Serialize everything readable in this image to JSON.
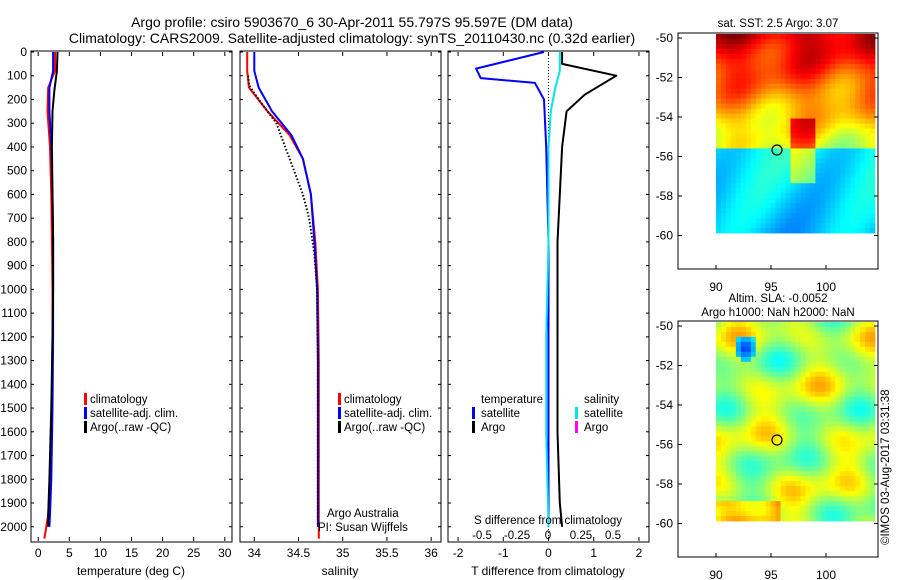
{
  "title_line1": "Argo profile: csiro 5903670_6 30-Apr-2011 55.797S 95.597E (DM data)",
  "title_line2": "Climatology: CARS2009. Satellite-adjusted climatology: synTS_20110430.nc (0.32d earlier)",
  "side_stamp": "©IMOS 03-Aug-2017 03:31:38",
  "colors": {
    "climatology": "#ff0000",
    "satellite": "#0000ff",
    "argo": "#000000",
    "salinity_satellite": "#00e5e5",
    "salinity_argo": "#ff00ff"
  },
  "depth_ticks": [
    "0",
    "100",
    "200",
    "300",
    "400",
    "500",
    "600",
    "700",
    "800",
    "900",
    "1000",
    "1100",
    "1200",
    "1300",
    "1400",
    "1500",
    "1600",
    "1700",
    "1800",
    "1900",
    "2000"
  ],
  "panels": {
    "temperature": {
      "xlabel": "temperature (deg C)",
      "xticks": [
        "0",
        "5",
        "10",
        "15",
        "20",
        "25",
        "30"
      ],
      "legend": [
        "climatology",
        "satellite-adj. clim.",
        "Argo(..raw -QC)"
      ]
    },
    "salinity": {
      "xlabel": "salinity",
      "xticks": [
        "34",
        "34.5",
        "35",
        "35.5",
        "36"
      ],
      "legend": [
        "climatology",
        "satellite-adj. clim.",
        "Argo(..raw -QC)"
      ],
      "note1": "Argo Australia",
      "note2": "PI: Susan Wijffels"
    },
    "difference": {
      "xlabel": "T difference from climatology",
      "xlabel_top": "S difference from climatology",
      "xticks_t": [
        "-2",
        "-1",
        "0",
        "1",
        "2"
      ],
      "xticks_s": [
        "-0.5",
        "-0.25",
        "0",
        "0.25",
        "0.5"
      ],
      "legend_temp_title": "temperature",
      "legend_sal_title": "salinity",
      "legend_temp": [
        "satellite",
        "Argo"
      ],
      "legend_sal": [
        "satellite",
        "Argo"
      ]
    }
  },
  "maps": {
    "sst": {
      "title": "sat. SST: 2.5 Argo: 3.07",
      "yticks": [
        "-50",
        "-52",
        "-54",
        "-56",
        "-58",
        "-60"
      ],
      "xticks": [
        "90",
        "95",
        "100"
      ]
    },
    "sla": {
      "title1": "Altim. SLA: -0.0052",
      "title2": "Argo h1000: NaN h2000: NaN",
      "yticks": [
        "-50",
        "-52",
        "-54",
        "-56",
        "-58",
        "-60"
      ],
      "xticks": [
        "90",
        "95",
        "100"
      ]
    }
  },
  "chart_data": [
    {
      "type": "line",
      "xlabel": "temperature (deg C)",
      "ylabel": "",
      "xlim": [
        -1,
        31
      ],
      "ylim": [
        2060,
        0
      ],
      "series": [
        {
          "name": "climatology",
          "x": [
            2.7,
            2.7,
            1.6,
            1.5,
            1.9,
            2.1,
            2.2,
            2.3,
            2.3,
            2.2,
            1.9,
            1.6,
            1.0
          ],
          "y": [
            0,
            80,
            150,
            250,
            400,
            600,
            800,
            1000,
            1200,
            1500,
            1800,
            1950,
            2050
          ]
        },
        {
          "name": "satellite-adj. clim.",
          "x": [
            2.4,
            2.4,
            1.8,
            1.8,
            2.1,
            2.3,
            2.4,
            2.4,
            2.4,
            2.3,
            2.1,
            1.9,
            1.8
          ],
          "y": [
            0,
            80,
            150,
            250,
            400,
            600,
            800,
            1000,
            1200,
            1500,
            1800,
            1950,
            2000
          ]
        },
        {
          "name": "Argo(..raw -QC)",
          "x": [
            3.1,
            3.0,
            2.6,
            2.3,
            2.2,
            2.3,
            2.4,
            2.4,
            2.3,
            2.1,
            1.8,
            1.6,
            1.6
          ],
          "y": [
            0,
            80,
            160,
            250,
            400,
            600,
            800,
            1000,
            1200,
            1500,
            1800,
            1950,
            2000
          ]
        }
      ]
    },
    {
      "type": "line",
      "xlabel": "salinity",
      "ylabel": "",
      "xlim": [
        33.85,
        36.1
      ],
      "ylim": [
        2060,
        0
      ],
      "series": [
        {
          "name": "climatology",
          "x": [
            33.92,
            33.92,
            33.94,
            34.15,
            34.4,
            34.55,
            34.64,
            34.69,
            34.72,
            34.73,
            34.73,
            34.73,
            34.73
          ],
          "y": [
            0,
            80,
            150,
            250,
            350,
            450,
            600,
            800,
            1000,
            1300,
            1600,
            1900,
            2050
          ]
        },
        {
          "name": "satellite-adj. clim.",
          "x": [
            34.0,
            34.0,
            34.05,
            34.2,
            34.42,
            34.55,
            34.64,
            34.68,
            34.71,
            34.72,
            34.72,
            34.72,
            34.72
          ],
          "y": [
            0,
            80,
            150,
            250,
            350,
            450,
            600,
            800,
            1000,
            1300,
            1600,
            1900,
            2000
          ]
        },
        {
          "name": "Argo(..raw -QC)",
          "x": [
            33.93,
            33.94,
            34.05,
            34.25,
            34.35,
            34.45,
            34.55,
            34.62,
            34.68,
            34.71,
            34.72,
            34.72,
            34.72
          ],
          "y": [
            100,
            140,
            200,
            300,
            400,
            500,
            600,
            700,
            850,
            1000,
            1300,
            1600,
            2000
          ]
        }
      ]
    },
    {
      "type": "line",
      "xlabel": "T difference from climatology",
      "xlabel_top": "S difference from climatology",
      "xlim": [
        -2.2,
        2.2
      ],
      "ylim": [
        2060,
        0
      ],
      "series": [
        {
          "name": "temperature satellite",
          "x": [
            -0.1,
            -1.6,
            -1.5,
            -0.3,
            -0.1,
            -0.05,
            0.0,
            0.0,
            0.0,
            0.0,
            0.0,
            0.0
          ],
          "y": [
            0,
            70,
            110,
            130,
            200,
            400,
            800,
            1000,
            1200,
            1500,
            1800,
            2000
          ]
        },
        {
          "name": "temperature Argo",
          "x": [
            0.3,
            0.3,
            1.5,
            0.8,
            0.4,
            0.3,
            0.25,
            0.2,
            0.2,
            0.2,
            0.2,
            0.25,
            0.3
          ],
          "y": [
            0,
            50,
            100,
            180,
            250,
            400,
            600,
            800,
            1000,
            1300,
            1600,
            1900,
            2000
          ]
        },
        {
          "name": "salinity satellite",
          "x": [
            0.25,
            0.25,
            0.15,
            0.05,
            0.0,
            0.0,
            -0.05,
            -0.05,
            0.0
          ],
          "y": [
            0,
            80,
            150,
            250,
            400,
            800,
            1200,
            1600,
            2000
          ]
        }
      ]
    }
  ]
}
